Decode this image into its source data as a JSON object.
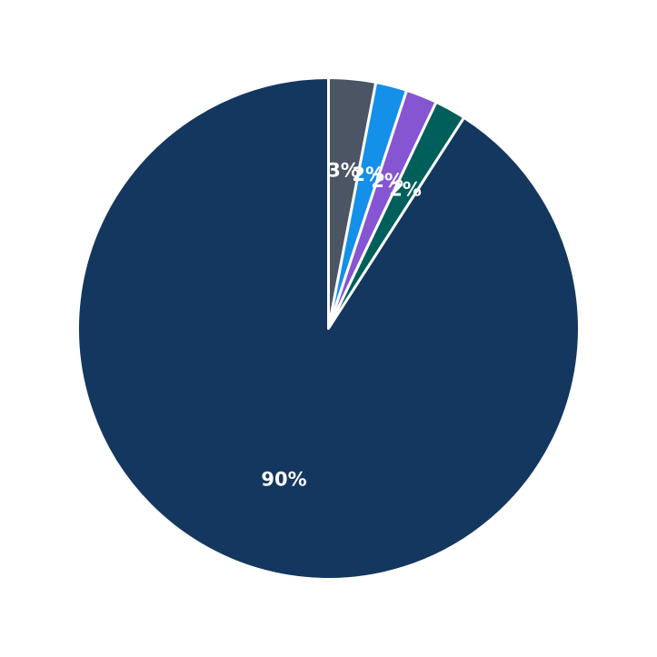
{
  "chart_data": {
    "type": "pie",
    "start_angle": "top",
    "direction": "clockwise",
    "slices": [
      {
        "value": 3,
        "label": "3%",
        "color": "#4b5563"
      },
      {
        "value": 2,
        "label": "2%",
        "color": "#1490e8"
      },
      {
        "value": 2,
        "label": "2%",
        "color": "#8655d1"
      },
      {
        "value": 2,
        "label": "2%",
        "color": "#005f5b"
      },
      {
        "value": 90,
        "label": "90%",
        "color": "#14375f"
      }
    ],
    "edge_color": "#ffffff",
    "background": "#ffffff"
  }
}
